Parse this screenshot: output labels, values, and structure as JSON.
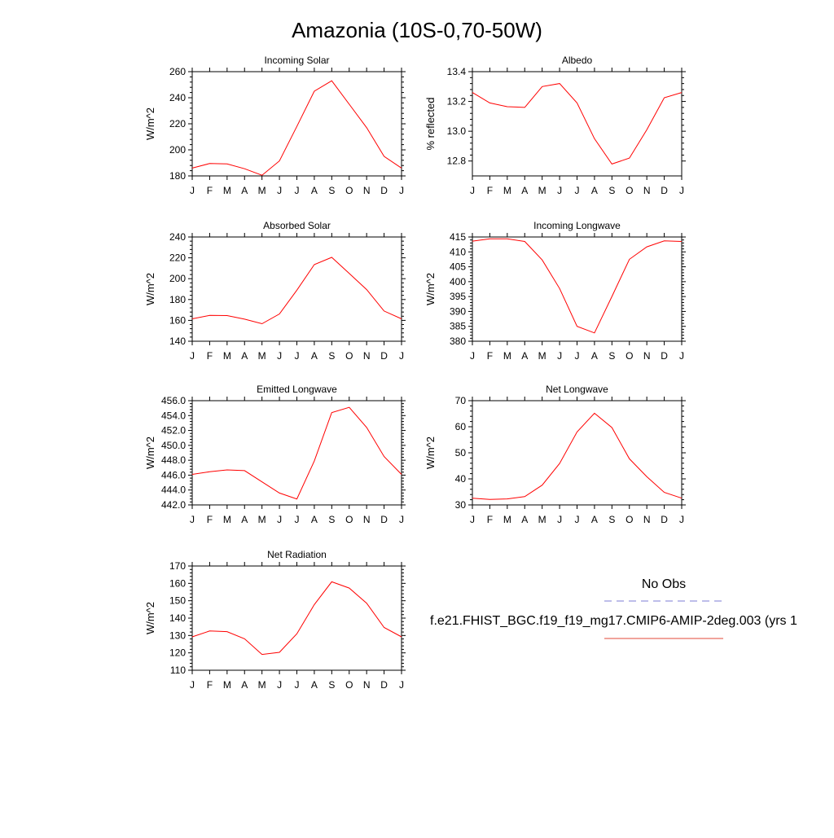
{
  "title": "Amazonia (10S-0,70-50W)",
  "legend": {
    "obs_label": "No Obs",
    "obs_color": "#7b7bd6",
    "model_label": "f.e21.FHIST_BGC.f19_f19_mg17.CMIP6-AMIP-2deg.003 (yrs 1",
    "model_color": "#e34a3a"
  },
  "chart_data": [
    {
      "type": "line",
      "title": "Incoming Solar",
      "ylabel": "W/m^2",
      "x": [
        "J",
        "F",
        "M",
        "A",
        "M",
        "J",
        "J",
        "A",
        "S",
        "O",
        "N",
        "D",
        "J"
      ],
      "ylim": [
        180,
        260
      ],
      "yticks": [
        "180",
        "200",
        "220",
        "240",
        "260"
      ],
      "series": [
        {
          "values": [
            186,
            189.5,
            189.2,
            185.5,
            180.5,
            191.5,
            218,
            245,
            253,
            235,
            217,
            195,
            186
          ],
          "color": "#ff0000"
        }
      ]
    },
    {
      "type": "line",
      "title": "Albedo",
      "ylabel": "% reflected",
      "x": [
        "J",
        "F",
        "M",
        "A",
        "M",
        "J",
        "J",
        "A",
        "S",
        "O",
        "N",
        "D",
        "J"
      ],
      "ylim": [
        12.7,
        13.4
      ],
      "yticks": [
        "12.8",
        "13.0",
        "13.2",
        "13.4"
      ],
      "series": [
        {
          "values": [
            13.26,
            13.19,
            13.165,
            13.16,
            13.3,
            13.32,
            13.19,
            12.95,
            12.78,
            12.82,
            13.01,
            13.225,
            13.26
          ],
          "color": "#ff0000"
        }
      ]
    },
    {
      "type": "line",
      "title": "Absorbed Solar",
      "ylabel": "W/m^2",
      "x": [
        "J",
        "F",
        "M",
        "A",
        "M",
        "J",
        "J",
        "A",
        "S",
        "O",
        "N",
        "D",
        "J"
      ],
      "ylim": [
        140,
        240
      ],
      "yticks": [
        "140",
        "160",
        "180",
        "200",
        "220",
        "240"
      ],
      "series": [
        {
          "values": [
            161.5,
            164.8,
            164.6,
            161.2,
            156.8,
            166.2,
            189,
            213.5,
            220.5,
            205,
            189.5,
            169,
            161.5
          ],
          "color": "#ff0000"
        }
      ]
    },
    {
      "type": "line",
      "title": "Incoming Longwave",
      "ylabel": "W/m^2",
      "x": [
        "J",
        "F",
        "M",
        "A",
        "M",
        "J",
        "J",
        "A",
        "S",
        "O",
        "N",
        "D",
        "J"
      ],
      "ylim": [
        380,
        415
      ],
      "yticks": [
        "380",
        "385",
        "390",
        "395",
        "400",
        "405",
        "410",
        "415"
      ],
      "series": [
        {
          "values": [
            413.6,
            414.4,
            414.4,
            413.5,
            407.3,
            397.7,
            385,
            382.8,
            395,
            407.5,
            411.7,
            413.7,
            413.5
          ],
          "color": "#ff0000"
        }
      ]
    },
    {
      "type": "line",
      "title": "Emitted Longwave",
      "ylabel": "W/m^2",
      "x": [
        "J",
        "F",
        "M",
        "A",
        "M",
        "J",
        "J",
        "A",
        "S",
        "O",
        "N",
        "D",
        "J"
      ],
      "ylim": [
        442,
        456
      ],
      "yticks": [
        "442.0",
        "444.0",
        "446.0",
        "448.0",
        "450.0",
        "452.0",
        "454.0",
        "456.0"
      ],
      "series": [
        {
          "values": [
            446.1,
            446.45,
            446.7,
            446.6,
            445.1,
            443.6,
            442.8,
            447.9,
            454.4,
            455.1,
            452.4,
            448.5,
            446.1
          ],
          "color": "#ff0000"
        }
      ]
    },
    {
      "type": "line",
      "title": "Net Longwave",
      "ylabel": "W/m^2",
      "x": [
        "J",
        "F",
        "M",
        "A",
        "M",
        "J",
        "J",
        "A",
        "S",
        "O",
        "N",
        "D",
        "J"
      ],
      "ylim": [
        30,
        70
      ],
      "yticks": [
        "30",
        "40",
        "50",
        "60",
        "70"
      ],
      "series": [
        {
          "values": [
            32.6,
            32.1,
            32.3,
            33.2,
            37.6,
            45.9,
            58,
            65.2,
            59.7,
            47.7,
            40.8,
            34.8,
            32.6
          ],
          "color": "#ff0000"
        }
      ]
    },
    {
      "type": "line",
      "title": "Net Radiation",
      "ylabel": "W/m^2",
      "x": [
        "J",
        "F",
        "M",
        "A",
        "M",
        "J",
        "J",
        "A",
        "S",
        "O",
        "N",
        "D",
        "J"
      ],
      "ylim": [
        110,
        170
      ],
      "yticks": [
        "110",
        "120",
        "130",
        "140",
        "150",
        "160",
        "170"
      ],
      "series": [
        {
          "values": [
            129.2,
            132.6,
            132.2,
            128.1,
            119.1,
            120.3,
            131,
            147.8,
            160.9,
            157.3,
            148.6,
            134.6,
            129.2
          ],
          "color": "#ff0000"
        }
      ]
    }
  ]
}
